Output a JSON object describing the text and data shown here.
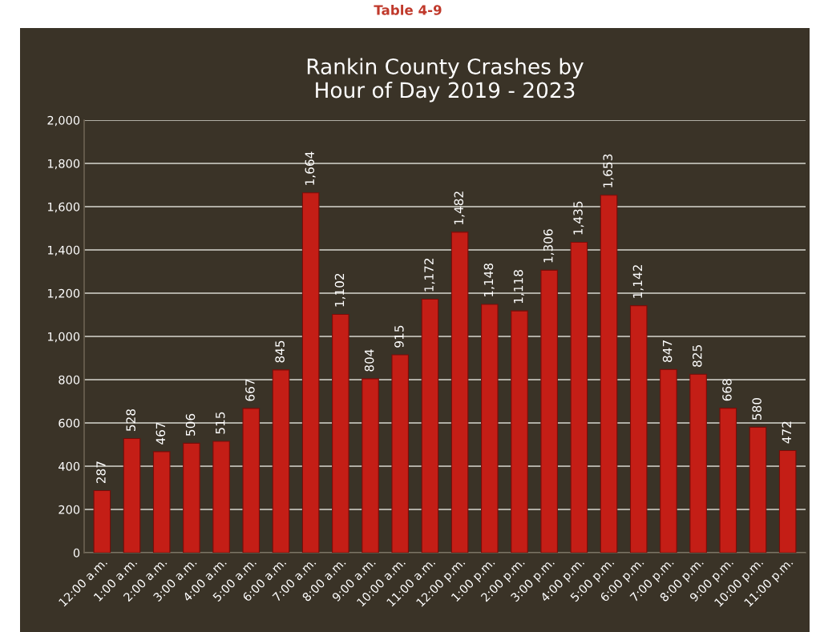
{
  "chart_data": {
    "type": "bar",
    "title": "Rankin County Crashes by\nHour of Day 2019 - 2023",
    "annotations": [
      "Table 4-9"
    ],
    "categories": [
      "12:00 a.m.",
      "1:00 a.m.",
      "2:00 a.m.",
      "3:00 a.m.",
      "4:00 a.m.",
      "5:00 a.m.",
      "6:00 a.m.",
      "7:00 a.m.",
      "8:00 a.m.",
      "9:00 a.m.",
      "10:00 a.m.",
      "11:00 a.m.",
      "12:00 p.m.",
      "1:00 p.m.",
      "2:00 p.m.",
      "3:00 p.m.",
      "4:00 p.m.",
      "5:00 p.m.",
      "6:00 p.m.",
      "7:00 p.m.",
      "8:00 p.m.",
      "9:00 p.m.",
      "10:00 p.m.",
      "11:00 p.m."
    ],
    "values": [
      287,
      528,
      467,
      506,
      515,
      667,
      845,
      1664,
      1102,
      804,
      915,
      1172,
      1482,
      1148,
      1118,
      1306,
      1435,
      1653,
      1142,
      847,
      825,
      668,
      580,
      472
    ],
    "value_labels": [
      "287",
      "528",
      "467",
      "506",
      "515",
      "667",
      "845",
      "1,664",
      "1,102",
      "804",
      "915",
      "1,172",
      "1,482",
      "1,148",
      "1,118",
      "1,306",
      "1,435",
      "1,653",
      "1,142",
      "847",
      "825",
      "668",
      "580",
      "472"
    ],
    "color": "#c41e16",
    "ylim": [
      0,
      2000
    ],
    "yticks": [
      0,
      200,
      400,
      600,
      800,
      {
        "value": 1000,
        "label": "1,000"
      },
      {
        "value": 1200,
        "label": "1,200"
      },
      {
        "value": 1400,
        "label": "1,400"
      },
      {
        "value": 1600,
        "label": "1,600"
      },
      {
        "value": 1800,
        "label": "1,800"
      },
      {
        "value": 2000,
        "label": "2,000"
      }
    ],
    "grid": "y",
    "legend": false
  }
}
